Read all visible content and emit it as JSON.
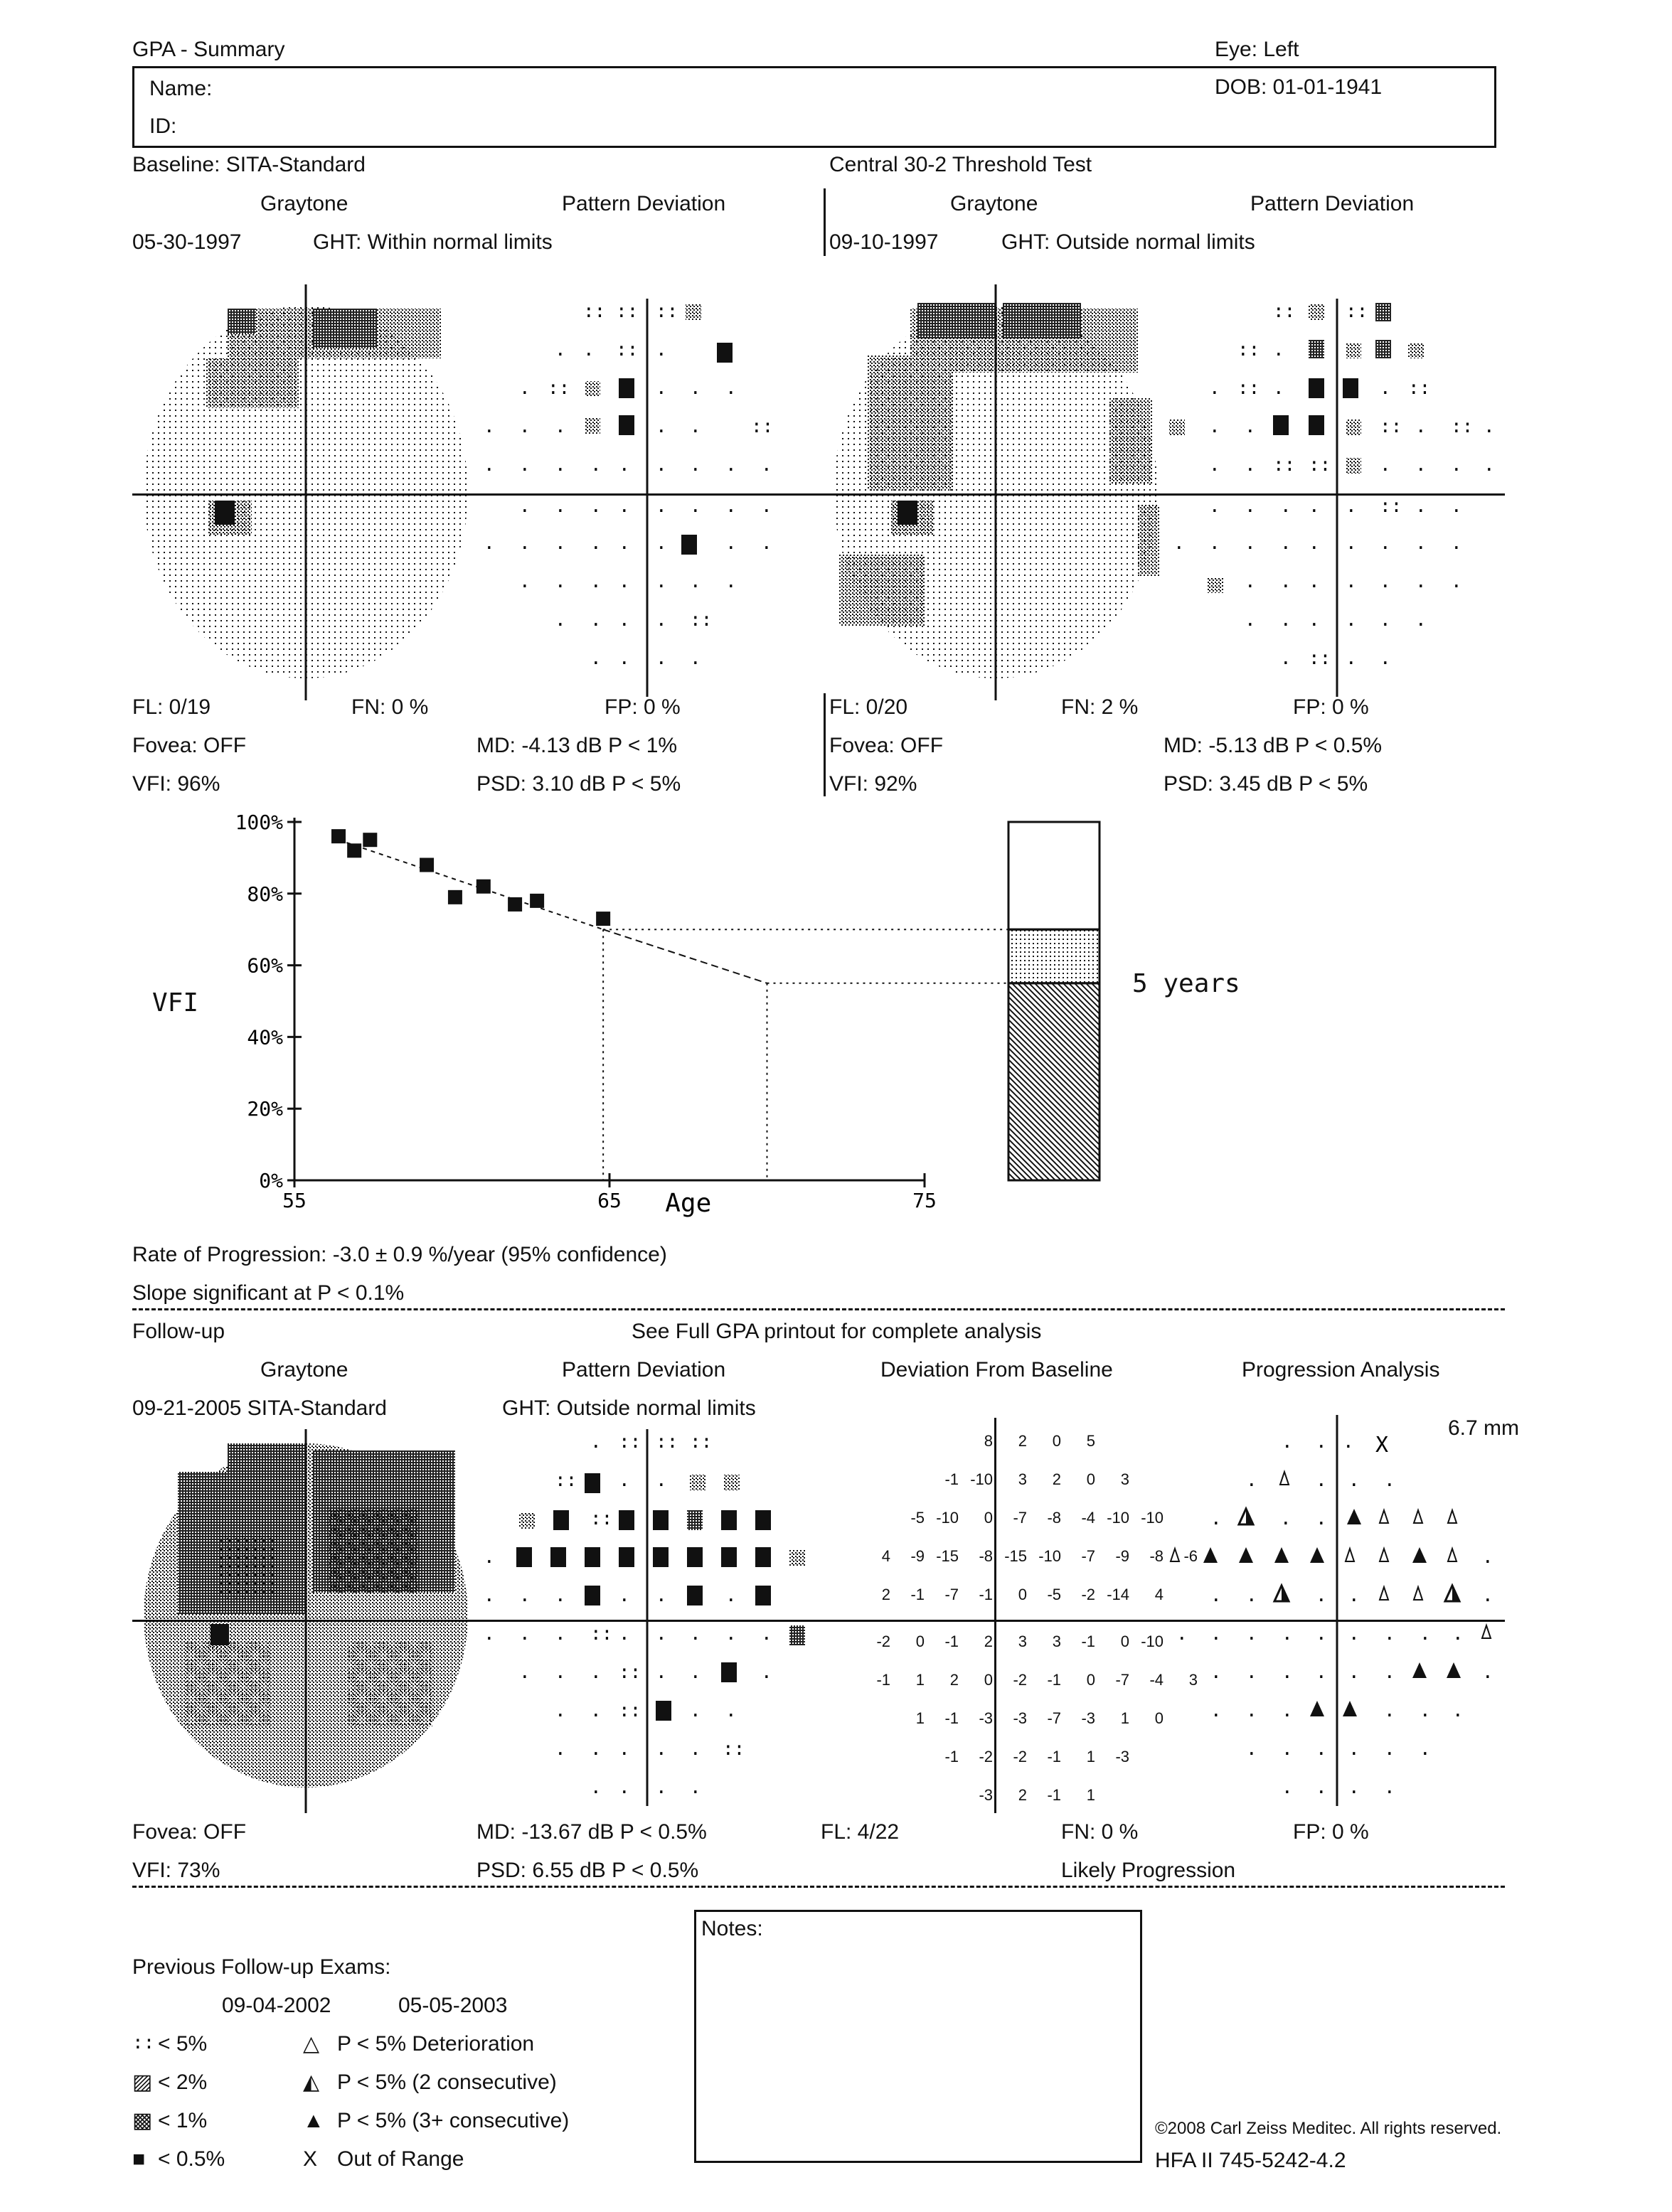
{
  "header": {
    "title": "GPA - Summary",
    "eye": "Eye: Left",
    "name_label": "Name:",
    "id_label": "ID:",
    "dob": "DOB: 01-01-1941",
    "baseline": "Baseline: SITA-Standard",
    "test": "Central 30-2 Threshold Test"
  },
  "baseline_exams": [
    {
      "graytone_label": "Graytone",
      "pattern_label": "Pattern Deviation",
      "date": "05-30-1997",
      "ght": "GHT: Within normal limits",
      "fl": "FL: 0/19",
      "fn": "FN:  0 %",
      "fp": "FP:  0 %",
      "fovea": "Fovea: OFF",
      "md": "MD:  -4.13 dB  P < 1%",
      "vfi": "VFI:  96%",
      "psd": "PSD:  3.10 dB  P < 5%"
    },
    {
      "graytone_label": "Graytone",
      "pattern_label": "Pattern Deviation",
      "date": "09-10-1997",
      "ght": "GHT: Outside normal limits",
      "fl": "FL: 0/20",
      "fn": "FN:  2 %",
      "fp": "FP:  0 %",
      "fovea": "Fovea: OFF",
      "md": "MD:  -5.13 dB  P < 0.5%",
      "vfi": "VFI:  92%",
      "psd": "PSD:  3.45 dB  P < 5%"
    }
  ],
  "chart_data": {
    "type": "scatter",
    "ylabel": "VFI",
    "xlabel": "Age",
    "xlim": [
      55,
      75
    ],
    "ylim": [
      0,
      100
    ],
    "x_ticks": [
      "55",
      "65",
      "75"
    ],
    "y_ticks": [
      "0%",
      "20%",
      "40%",
      "60%",
      "80%",
      "100%"
    ],
    "points": [
      {
        "x": 56.4,
        "y": 96
      },
      {
        "x": 56.9,
        "y": 92
      },
      {
        "x": 57.4,
        "y": 95
      },
      {
        "x": 59.2,
        "y": 88
      },
      {
        "x": 60.1,
        "y": 79
      },
      {
        "x": 61.0,
        "y": 82
      },
      {
        "x": 62.0,
        "y": 77
      },
      {
        "x": 62.7,
        "y": 78
      },
      {
        "x": 64.8,
        "y": 73
      }
    ],
    "trend": [
      {
        "x": 56.4,
        "y": 95
      },
      {
        "x": 64.8,
        "y": 70
      },
      {
        "x": 70.0,
        "y": 55
      }
    ],
    "current_age": 64.8,
    "projected_age": 70.0,
    "bar_levels": [
      70,
      55
    ],
    "bar_label": "5 years"
  },
  "progression": {
    "rate": "Rate of Progression: -3.0 ± 0.9 %/year (95% confidence)",
    "slope": "Slope significant at P < 0.1%"
  },
  "followup": {
    "title": "Follow-up",
    "note": "See Full GPA printout for complete analysis",
    "col_graytone": "Graytone",
    "col_pattern": "Pattern Deviation",
    "col_dev_baseline": "Deviation From Baseline",
    "col_progression": "Progression Analysis",
    "date": "09-21-2005  SITA-Standard",
    "ght": "GHT: Outside normal limits",
    "pupil": "6.7 mm",
    "fovea": "Fovea: OFF",
    "vfi": "VFI:  73%",
    "md": "MD: -13.67 dB  P < 0.5%",
    "psd": "PSD:  6.55 dB  P < 0.5%",
    "fl": "FL: 4/22",
    "fn": "FN:  0 %",
    "fp": "FP:  0 %",
    "verdict": "Likely Progression",
    "deviation_rows": [
      [
        "8",
        "2",
        "0",
        "5"
      ],
      [
        "-1",
        "-10",
        "3",
        "2",
        "0",
        "3"
      ],
      [
        "-5",
        "-10",
        "0",
        "-7",
        "-8",
        "-4",
        "-10",
        "-10"
      ],
      [
        "4",
        "-9",
        "-15",
        "-8",
        "-15",
        "-10",
        "-7",
        "-9",
        "-8",
        "-6"
      ],
      [
        "2",
        "-1",
        "-7",
        "-1",
        "0",
        "-5",
        "-2",
        "-14",
        "4"
      ],
      [
        "-2",
        "0",
        "-1",
        "2",
        "3",
        "3",
        "-1",
        "0",
        "-10"
      ],
      [
        "-1",
        "1",
        "2",
        "0",
        "-2",
        "-1",
        "0",
        "-7",
        "-4",
        "3"
      ],
      [
        "1",
        "-1",
        "-3",
        "-3",
        "-7",
        "-3",
        "1",
        "0"
      ],
      [
        "-1",
        "-2",
        "-2",
        "-1",
        "1",
        "-3"
      ],
      [
        "-3",
        "2",
        "-1",
        "1"
      ]
    ]
  },
  "previous": {
    "label": "Previous Follow-up Exams:",
    "date1": "09-04-2002",
    "date2": "05-05-2003"
  },
  "notes_label": "Notes:",
  "legend": [
    {
      "sym": "::",
      "text": "< 5%"
    },
    {
      "sym": "▨",
      "text": "< 2%"
    },
    {
      "sym": "▩",
      "text": "< 1%"
    },
    {
      "sym": "■",
      "text": "< 0.5%"
    },
    {
      "sym": "△",
      "text": "P < 5% Deterioration"
    },
    {
      "sym": "◭",
      "text": "P < 5% (2 consecutive)"
    },
    {
      "sym": "▲",
      "text": "P < 5% (3+ consecutive)"
    },
    {
      "sym": "X",
      "text": "Out of Range"
    }
  ],
  "footer": {
    "copyright": "©2008 Carl Zeiss Meditec. All rights reserved.",
    "model": "HFA II 745-5242-4.2"
  }
}
